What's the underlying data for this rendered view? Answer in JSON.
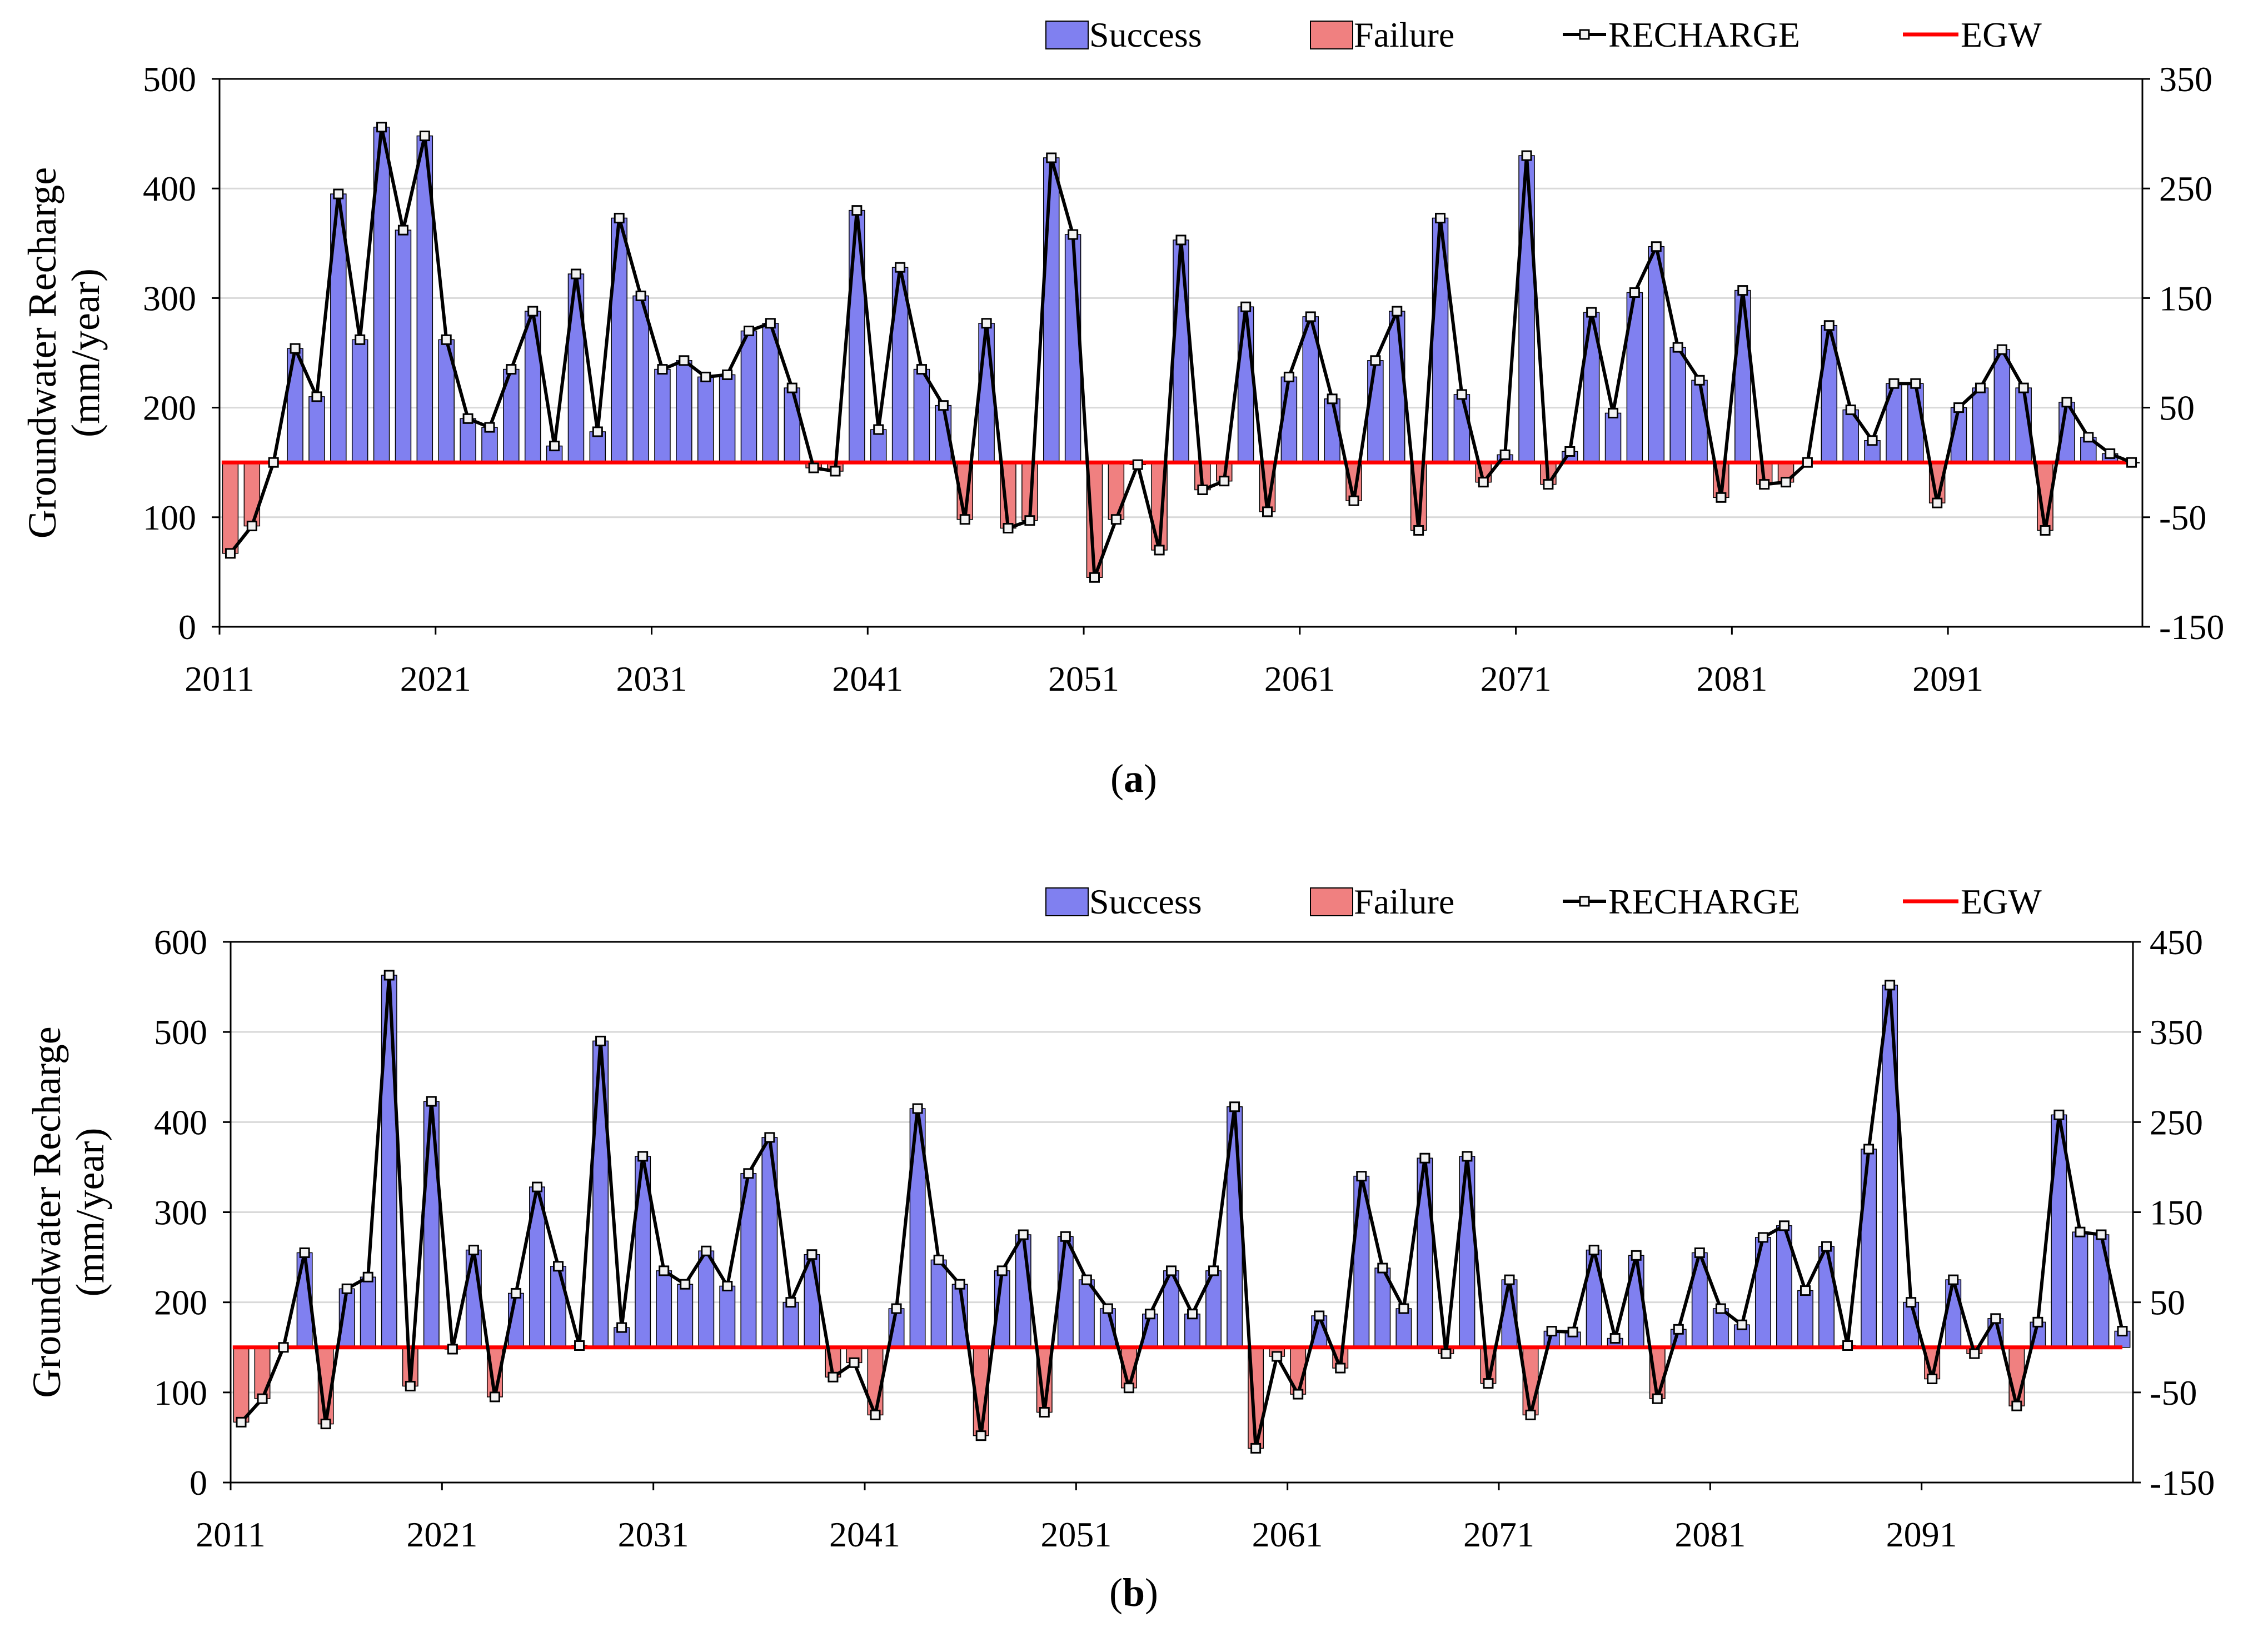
{
  "colors": {
    "success": "#8080f0",
    "failure": "#f08080",
    "recharge": "#000000",
    "egw": "#ff0000",
    "grid": "#d9d9d9"
  },
  "chart_data": [
    {
      "type": "bar",
      "panel_label": "a",
      "ylabel": "Groundwater Recharge (mm/year)",
      "ylabel_line1": "Groundwater Recharge",
      "ylabel_line2": "(mm/year)",
      "legend": {
        "success": "Success",
        "failure": "Failure",
        "recharge": "RECHARGE",
        "egw": "EGW"
      },
      "ylim": [
        0,
        500
      ],
      "yticks": [
        0,
        100,
        200,
        300,
        400,
        500
      ],
      "y2lim": [
        -150,
        350
      ],
      "y2ticks": [
        -150,
        -50,
        50,
        150,
        250,
        350
      ],
      "xticks": [
        "2011",
        "2021",
        "2031",
        "2041",
        "2051",
        "2061",
        "2071",
        "2081",
        "2091"
      ],
      "start_year": 2011,
      "egw": 150,
      "recharge": [
        67,
        92,
        150,
        254,
        210,
        395,
        262,
        456,
        362,
        448,
        262,
        190,
        182,
        235,
        288,
        165,
        322,
        178,
        373,
        302,
        235,
        243,
        228,
        230,
        270,
        277,
        218,
        145,
        142,
        380,
        180,
        328,
        235,
        202,
        98,
        277,
        90,
        97,
        428,
        358,
        45,
        98,
        148,
        70,
        353,
        125,
        133,
        292,
        105,
        228,
        283,
        208,
        115,
        243,
        288,
        88,
        373,
        212,
        132,
        157,
        430,
        130,
        160,
        287,
        195,
        305,
        347,
        255,
        225,
        118,
        307,
        130,
        132,
        150,
        275,
        198,
        170,
        222,
        222,
        113,
        200,
        218,
        253,
        218,
        88,
        205,
        173,
        158,
        150
      ]
    },
    {
      "type": "bar",
      "panel_label": "b",
      "ylabel": "Groundwater Recharge (mm/year)",
      "ylabel_line1": "Groundwater Recharge",
      "ylabel_line2": "(mm/year)",
      "legend": {
        "success": "Success",
        "failure": "Failure",
        "recharge": "RECHARGE",
        "egw": "EGW"
      },
      "ylim": [
        0,
        600
      ],
      "yticks": [
        0,
        100,
        200,
        300,
        400,
        500,
        600
      ],
      "y2lim": [
        -150,
        450
      ],
      "y2ticks": [
        -150,
        -50,
        50,
        150,
        250,
        350,
        450
      ],
      "xticks": [
        "2011",
        "2021",
        "2031",
        "2041",
        "2051",
        "2061",
        "2071",
        "2081",
        "2091"
      ],
      "start_year": 2011,
      "egw": 150,
      "recharge": [
        67,
        93,
        150,
        255,
        65,
        215,
        228,
        563,
        107,
        423,
        148,
        258,
        95,
        210,
        328,
        240,
        152,
        490,
        172,
        362,
        235,
        220,
        257,
        218,
        343,
        383,
        200,
        253,
        117,
        133,
        75,
        193,
        415,
        247,
        220,
        52,
        235,
        275,
        78,
        273,
        225,
        193,
        105,
        187,
        235,
        187,
        235,
        417,
        38,
        140,
        98,
        185,
        127,
        340,
        238,
        193,
        360,
        143,
        362,
        110,
        225,
        75,
        168,
        167,
        258,
        160,
        252,
        93,
        170,
        255,
        193,
        175,
        272,
        285,
        213,
        262,
        152,
        370,
        552,
        200,
        115,
        225,
        143,
        182,
        85,
        178,
        408,
        278,
        275,
        168
      ]
    }
  ]
}
